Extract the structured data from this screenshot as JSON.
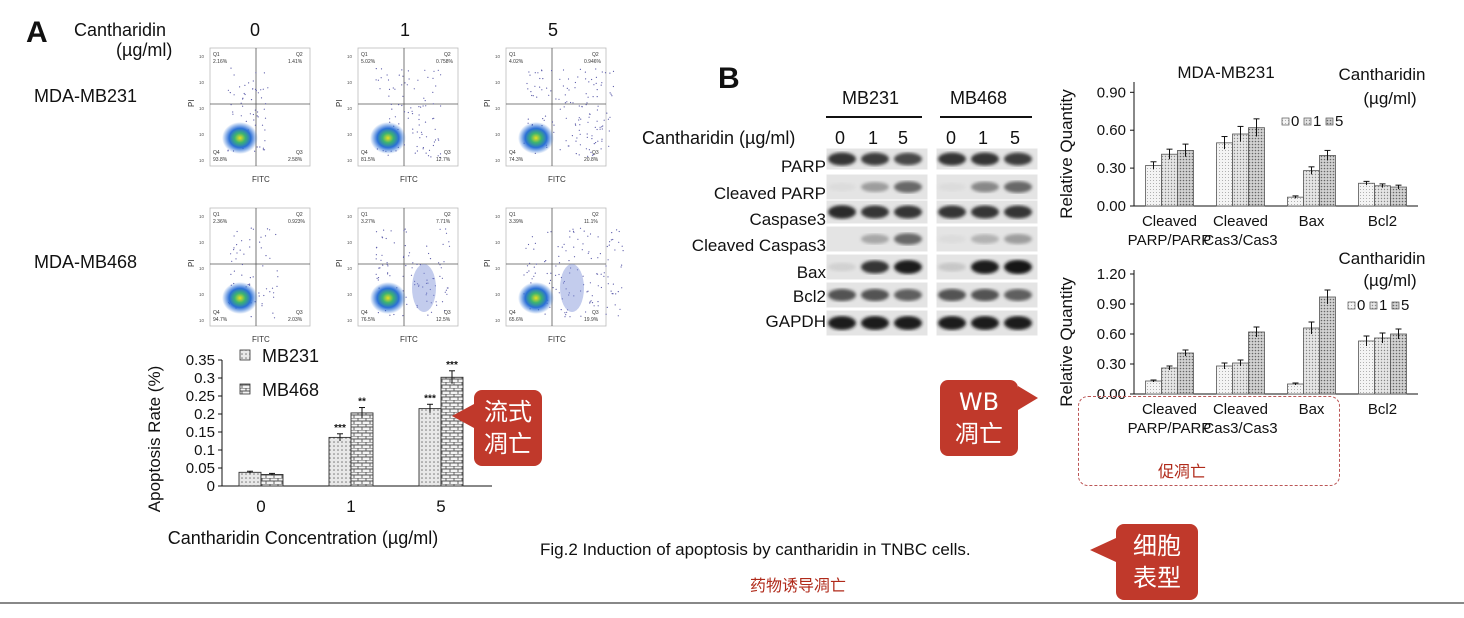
{
  "panelA": {
    "letter": "A",
    "cantharidin_label": "Cantharidin",
    "unit_label": "(µg/ml)",
    "doses": [
      "0",
      "1",
      "5"
    ],
    "rows": [
      "MDA-MB231",
      "MDA-MB468"
    ],
    "flow_xlabel": "FITC",
    "flow_ylabel": "PI",
    "quadrants": [
      [
        {
          "q1": "2.16%",
          "q2": "1.41%",
          "q3": "2.58%",
          "q4": "93.8%"
        },
        {
          "q1": "5.02%",
          "q2": "0.758%",
          "q3": "12.7%",
          "q4": "81.5%"
        },
        {
          "q1": "4.02%",
          "q2": "0.946%",
          "q3": "20.8%",
          "q4": "74.3%"
        }
      ],
      [
        {
          "q1": "2.36%",
          "q2": "0.923%",
          "q3": "2.03%",
          "q4": "94.7%"
        },
        {
          "q1": "3.27%",
          "q2": "7.71%",
          "q3": "12.5%",
          "q4": "76.5%"
        },
        {
          "q1": "3.39%",
          "q2": "11.1%",
          "q3": "19.9%",
          "q4": "65.6%"
        }
      ]
    ],
    "callout": [
      "流式",
      "凋亡"
    ]
  },
  "chart_data": [
    {
      "type": "bar",
      "categories": [
        "0",
        "1",
        "5"
      ],
      "series": [
        {
          "name": "MB231",
          "values": [
            0.038,
            0.135,
            0.215
          ],
          "errors": [
            0.003,
            0.01,
            0.012
          ],
          "sig": [
            "",
            "***",
            "***"
          ]
        },
        {
          "name": "MB468",
          "values": [
            0.032,
            0.203,
            0.302
          ],
          "errors": [
            0.003,
            0.015,
            0.018
          ],
          "sig": [
            "",
            "**",
            "***"
          ]
        }
      ],
      "xlabel": "Cantharidin Concentration (µg/ml)",
      "ylabel": "Apoptosis Rate (%)",
      "yticks": [
        "0",
        "0.05",
        "0.1",
        "0.15",
        "0.2",
        "0.25",
        "0.3",
        "0.35"
      ],
      "ylim": [
        0,
        0.35
      ],
      "legend_placement": "top-left"
    },
    {
      "type": "bar",
      "title": "MDA-MB231",
      "legend_title": "Cantharidin\n(µg/ml)",
      "categories": [
        "Cleaved\nPARP/PARP",
        "Cleaved\nCas3/Cas3",
        "Bax",
        "Bcl2"
      ],
      "series": [
        {
          "name": "0",
          "values": [
            0.32,
            0.5,
            0.07,
            0.18
          ],
          "errors": [
            0.03,
            0.05,
            0.01,
            0.015
          ]
        },
        {
          "name": "1",
          "values": [
            0.41,
            0.57,
            0.28,
            0.16
          ],
          "errors": [
            0.04,
            0.06,
            0.03,
            0.015
          ]
        },
        {
          "name": "5",
          "values": [
            0.44,
            0.62,
            0.4,
            0.15
          ],
          "errors": [
            0.05,
            0.07,
            0.04,
            0.015
          ]
        }
      ],
      "ylabel": "Relative Quantity",
      "yticks": [
        "0.00",
        "0.30",
        "0.60",
        "0.90"
      ],
      "ylim": [
        0,
        0.95
      ]
    },
    {
      "type": "bar",
      "legend_title": "Cantharidin\n(µg/ml)",
      "categories": [
        "Cleaved\nPARP/PARP",
        "Cleaved\nCas3/Cas3",
        "Bax",
        "Bcl2"
      ],
      "series": [
        {
          "name": "0",
          "values": [
            0.13,
            0.28,
            0.1,
            0.53
          ],
          "errors": [
            0.01,
            0.03,
            0.01,
            0.05
          ]
        },
        {
          "name": "1",
          "values": [
            0.26,
            0.31,
            0.66,
            0.56
          ],
          "errors": [
            0.02,
            0.03,
            0.06,
            0.05
          ]
        },
        {
          "name": "5",
          "values": [
            0.41,
            0.62,
            0.97,
            0.6
          ],
          "errors": [
            0.03,
            0.05,
            0.07,
            0.05
          ]
        }
      ],
      "ylabel": "Relative Quantity",
      "yticks": [
        "0.00",
        "0.30",
        "0.60",
        "0.90",
        "1.20"
      ],
      "ylim": [
        0,
        1.2
      ]
    }
  ],
  "panelB": {
    "letter": "B",
    "groups": [
      "MB231",
      "MB468"
    ],
    "cantharidin_row": "Cantharidin  (µg/ml)",
    "doses": [
      "0",
      "1",
      "5",
      "0",
      "1",
      "5"
    ],
    "bands": [
      "PARP",
      "Cleaved PARP",
      "Caspase3",
      "Cleaved Caspas3",
      "Bax",
      "Bcl2",
      "GAPDH"
    ],
    "callout": [
      "WB",
      "凋亡"
    ],
    "note": "促凋亡"
  },
  "caption": {
    "text": "Fig.2 Induction of apoptosis by cantharidin in TNBC cells.",
    "note": "药物诱导凋亡",
    "callout": [
      "细胞",
      "表型"
    ]
  },
  "colors": {
    "accent": "#c0392b",
    "note": "#b02a1a"
  }
}
